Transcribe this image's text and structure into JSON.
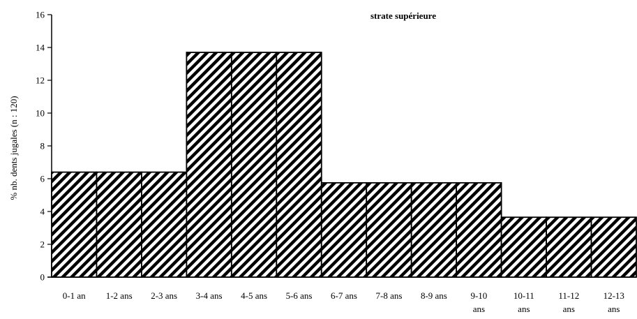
{
  "chart_data": {
    "type": "bar",
    "title": "strate supérieure",
    "ylabel": "% nb. dents jugales (n : 120)",
    "xlabel": "",
    "ylim": [
      0,
      16
    ],
    "yticks": [
      0,
      2,
      4,
      6,
      8,
      10,
      12,
      14,
      16
    ],
    "grid": false,
    "fill_pattern": "diagonal-hatch",
    "bar_color": "#000000",
    "categories": [
      [
        "0-1 an"
      ],
      [
        "1-2 ans"
      ],
      [
        "2-3 ans"
      ],
      [
        "3-4 ans"
      ],
      [
        "4-5 ans"
      ],
      [
        "5-6 ans"
      ],
      [
        "6-7 ans"
      ],
      [
        "7-8 ans"
      ],
      [
        "8-9 ans"
      ],
      [
        "9-10",
        "ans"
      ],
      [
        "10-11",
        "ans"
      ],
      [
        "11-12",
        "ans"
      ],
      [
        "12-13",
        "ans"
      ]
    ],
    "values": [
      6.4,
      6.4,
      6.4,
      13.7,
      13.7,
      13.7,
      5.75,
      5.75,
      5.75,
      5.75,
      3.65,
      3.65,
      3.65
    ]
  }
}
